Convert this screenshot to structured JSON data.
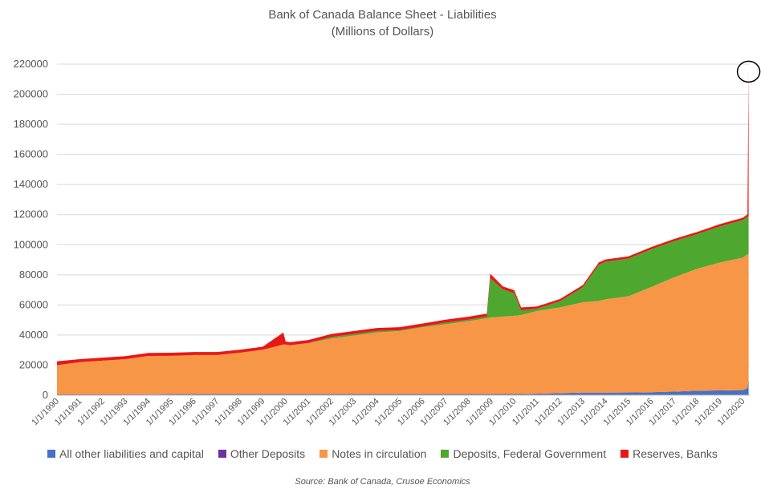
{
  "chart_data": {
    "type": "area",
    "title": "Bank of Canada Balance Sheet - Liabilities",
    "subtitle": "(Millions of Dollars)",
    "xlabel": "",
    "ylabel": "",
    "ylim": [
      0,
      220000
    ],
    "yticks": [
      "0",
      "20000",
      "40000",
      "60000",
      "80000",
      "100000",
      "120000",
      "140000",
      "160000",
      "180000",
      "200000",
      "220000"
    ],
    "stacked": true,
    "grid": "horizontal",
    "legend_position": "bottom",
    "x_tick_labels": [
      "1/1/1990",
      "1/1/1991",
      "1/1/1992",
      "1/1/1993",
      "1/1/1994",
      "1/1/1995",
      "1/1/1996",
      "1/1/1997",
      "1/1/1998",
      "1/1/1999",
      "1/1/2000",
      "1/1/2001",
      "1/1/2002",
      "1/1/2003",
      "1/1/2004",
      "1/1/2005",
      "1/1/2006",
      "1/1/2007",
      "1/1/2008",
      "1/1/2009",
      "1/1/2010",
      "1/1/2011",
      "1/1/2012",
      "1/1/2013",
      "1/1/2014",
      "1/1/2015",
      "1/1/2016",
      "1/1/2017",
      "1/1/2018",
      "1/1/2019",
      "1/1/2020"
    ],
    "x": [
      1990,
      1991,
      1992,
      1993,
      1994,
      1995,
      1996,
      1997,
      1998,
      1999,
      1999.9,
      2000,
      2000.2,
      2001,
      2002,
      2003,
      2004,
      2005,
      2006,
      2007,
      2008,
      2008.8,
      2008.95,
      2009.5,
      2010,
      2010.3,
      2011,
      2012,
      2013,
      2013.7,
      2014,
      2015,
      2016,
      2017,
      2018,
      2019,
      2020,
      2020.2,
      2020.25
    ],
    "series": [
      {
        "name": "All other liabilities and capital",
        "color": "#4472C4",
        "values": [
          300,
          300,
          300,
          300,
          400,
          500,
          500,
          500,
          500,
          500,
          500,
          500,
          500,
          500,
          500,
          500,
          500,
          500,
          500,
          500,
          500,
          500,
          500,
          600,
          600,
          600,
          800,
          1200,
          1500,
          1500,
          1500,
          1600,
          1800,
          2200,
          2800,
          3000,
          3200,
          4500,
          11000
        ]
      },
      {
        "name": "Other Deposits",
        "color": "#7030A0",
        "values": [
          200,
          200,
          200,
          200,
          200,
          200,
          200,
          200,
          200,
          200,
          200,
          200,
          200,
          200,
          200,
          200,
          200,
          200,
          200,
          200,
          200,
          200,
          200,
          200,
          200,
          200,
          200,
          200,
          200,
          200,
          200,
          200,
          200,
          200,
          200,
          200,
          200,
          200,
          200
        ]
      },
      {
        "name": "Notes in circulation",
        "color": "#F79646",
        "values": [
          19500,
          21500,
          22500,
          23500,
          25500,
          25500,
          26000,
          26000,
          27500,
          29500,
          33000,
          33000,
          32500,
          34000,
          37000,
          39000,
          41000,
          42000,
          44500,
          46500,
          48500,
          50500,
          51000,
          51500,
          52000,
          52500,
          55000,
          57000,
          60000,
          61000,
          62000,
          64000,
          70000,
          76000,
          81000,
          85000,
          88000,
          89000,
          82000
        ]
      },
      {
        "name": "Deposits, Federal Government",
        "color": "#4EA72E",
        "values": [
          0,
          0,
          0,
          0,
          0,
          0,
          0,
          0,
          0,
          0,
          0,
          0,
          0,
          0,
          1000,
          1000,
          1000,
          500,
          500,
          1000,
          1000,
          1000,
          26000,
          18000,
          15000,
          3000,
          1500,
          4000,
          10000,
          24000,
          25000,
          25000,
          25000,
          24000,
          23000,
          24000,
          25000,
          25000,
          25000
        ]
      },
      {
        "name": "Reserves, Banks",
        "color": "#E81818",
        "values": [
          2500,
          2000,
          2000,
          2000,
          2000,
          2000,
          2000,
          2000,
          2000,
          2000,
          8000,
          2000,
          2000,
          2000,
          2000,
          2000,
          2000,
          2000,
          2000,
          2000,
          2000,
          2000,
          3000,
          2000,
          2000,
          2000,
          1500,
          1500,
          1500,
          1500,
          1500,
          1500,
          1500,
          1500,
          1500,
          1500,
          1500,
          1500,
          97000
        ]
      }
    ],
    "annotations": [
      {
        "type": "circle",
        "x": 2020.25,
        "y": 215000
      }
    ],
    "source": "Source:  Bank of Canada, Crusoe Economics"
  }
}
